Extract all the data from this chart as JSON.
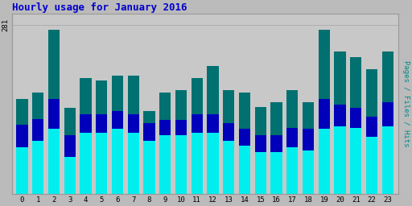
{
  "title": "Hourly usage for January 2016",
  "ylabel_right": "Pages / Files / Hits",
  "hours": [
    0,
    1,
    2,
    3,
    4,
    5,
    6,
    7,
    8,
    9,
    10,
    11,
    12,
    13,
    14,
    15,
    16,
    17,
    18,
    19,
    20,
    21,
    22,
    23
  ],
  "hits": [
    158,
    168,
    272,
    143,
    192,
    188,
    197,
    197,
    138,
    168,
    173,
    193,
    212,
    173,
    168,
    145,
    153,
    173,
    153,
    272,
    237,
    227,
    207,
    237
  ],
  "files": [
    115,
    125,
    158,
    98,
    133,
    133,
    138,
    133,
    118,
    123,
    123,
    133,
    133,
    118,
    108,
    98,
    98,
    110,
    108,
    158,
    148,
    143,
    128,
    153
  ],
  "pages": [
    78,
    88,
    108,
    62,
    102,
    102,
    108,
    102,
    88,
    98,
    98,
    102,
    102,
    88,
    80,
    70,
    70,
    78,
    72,
    108,
    112,
    110,
    95,
    112
  ],
  "hits_color": "#007070",
  "files_color": "#0000BB",
  "pages_color": "#00EEEE",
  "bg_color": "#BBBBBB",
  "plot_bg_color": "#C8C8C8",
  "title_color": "#0000CC",
  "ylabel_color": "#008888",
  "ytick_label": "281",
  "ytick_val": 281,
  "grid_color": "#AAAAAA",
  "border_color": "#999999",
  "bar_width": 0.72
}
